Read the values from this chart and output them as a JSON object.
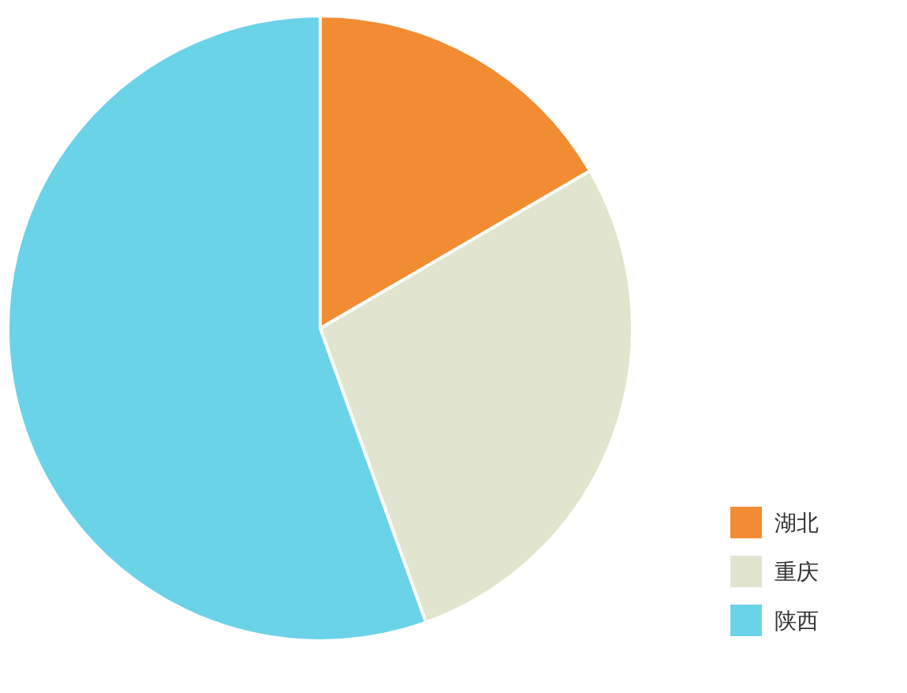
{
  "chart_data": {
    "type": "pie",
    "categories": [
      "湖北",
      "重庆",
      "陕西"
    ],
    "values": [
      16.6,
      27.9,
      55.5
    ],
    "colors": [
      "#f28c33",
      "#e1e5cf",
      "#6ad3e8"
    ],
    "legend": "bottom right"
  }
}
